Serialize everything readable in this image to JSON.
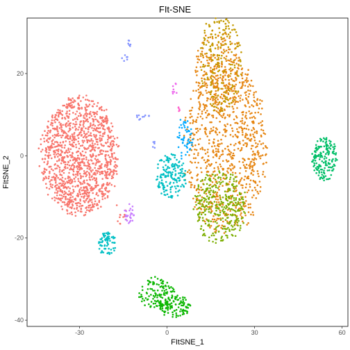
{
  "chart_data": {
    "type": "scatter",
    "title": "FIt-SNE",
    "xlabel": "FItSNE_1",
    "ylabel": "FItSNE_2",
    "xlim": [
      -48,
      62
    ],
    "ylim": [
      -41.5,
      33.5
    ],
    "xticks": [
      -30,
      0,
      30,
      60
    ],
    "yticks": [
      -40,
      -20,
      0,
      20
    ],
    "grid": false,
    "legend": "none",
    "series": [
      {
        "color": "#F8766D",
        "values": [
          [
            -30.0,
            0.0,
            7.5,
            8.0,
            1300
          ],
          [
            -16.5,
            -14.5,
            1.5,
            2.0,
            12
          ]
        ],
        "marker": "blob"
      },
      {
        "color": "#E68613",
        "values": [
          [
            20.0,
            2.0,
            8.0,
            12.0,
            900
          ],
          [
            18.0,
            20.0,
            5.0,
            6.0,
            180
          ]
        ],
        "marker": "blob"
      },
      {
        "color": "#C49A00",
        "values": [
          [
            18.5,
            23.0,
            4.0,
            7.0,
            220
          ]
        ],
        "marker": "blob"
      },
      {
        "color": "#7CAE00",
        "values": [
          [
            18.0,
            -12.5,
            5.0,
            5.0,
            330
          ]
        ],
        "marker": "blob"
      },
      {
        "color": "#0CB702",
        "values": [
          [
            -3.5,
            -33.5,
            3.5,
            2.2,
            120
          ],
          [
            2.5,
            -36.5,
            3.0,
            1.6,
            110
          ]
        ],
        "marker": "blob"
      },
      {
        "color": "#00BE67",
        "values": [
          [
            54.0,
            -1.0,
            2.5,
            3.0,
            170
          ]
        ],
        "marker": "blob"
      },
      {
        "color": "#00BFC4",
        "values": [
          [
            1.5,
            -5.0,
            3.0,
            3.0,
            170
          ],
          [
            -20.5,
            -21.5,
            1.8,
            1.6,
            70
          ]
        ],
        "marker": "blob"
      },
      {
        "color": "#00A9FF",
        "values": [
          [
            6.0,
            4.0,
            1.5,
            3.0,
            55
          ]
        ],
        "marker": "blob"
      },
      {
        "color": "#8494FF",
        "values": [
          [
            -13.0,
            27.2,
            0.5,
            0.5,
            6
          ],
          [
            -14.5,
            24.0,
            0.6,
            0.6,
            6
          ],
          [
            -8.5,
            9.5,
            1.5,
            0.5,
            10
          ],
          [
            -4.5,
            2.5,
            0.4,
            0.6,
            5
          ]
        ],
        "marker": "blob"
      },
      {
        "color": "#C77CFF",
        "values": [
          [
            -13.0,
            -14.0,
            1.0,
            1.5,
            25
          ]
        ],
        "marker": "blob"
      },
      {
        "color": "#ED68ED",
        "values": [
          [
            2.5,
            16.0,
            0.5,
            1.5,
            8
          ]
        ],
        "marker": "blob"
      },
      {
        "color": "#FF61CC",
        "values": [
          [
            4.5,
            11.5,
            0.4,
            0.5,
            5
          ]
        ],
        "marker": "blob"
      }
    ]
  }
}
